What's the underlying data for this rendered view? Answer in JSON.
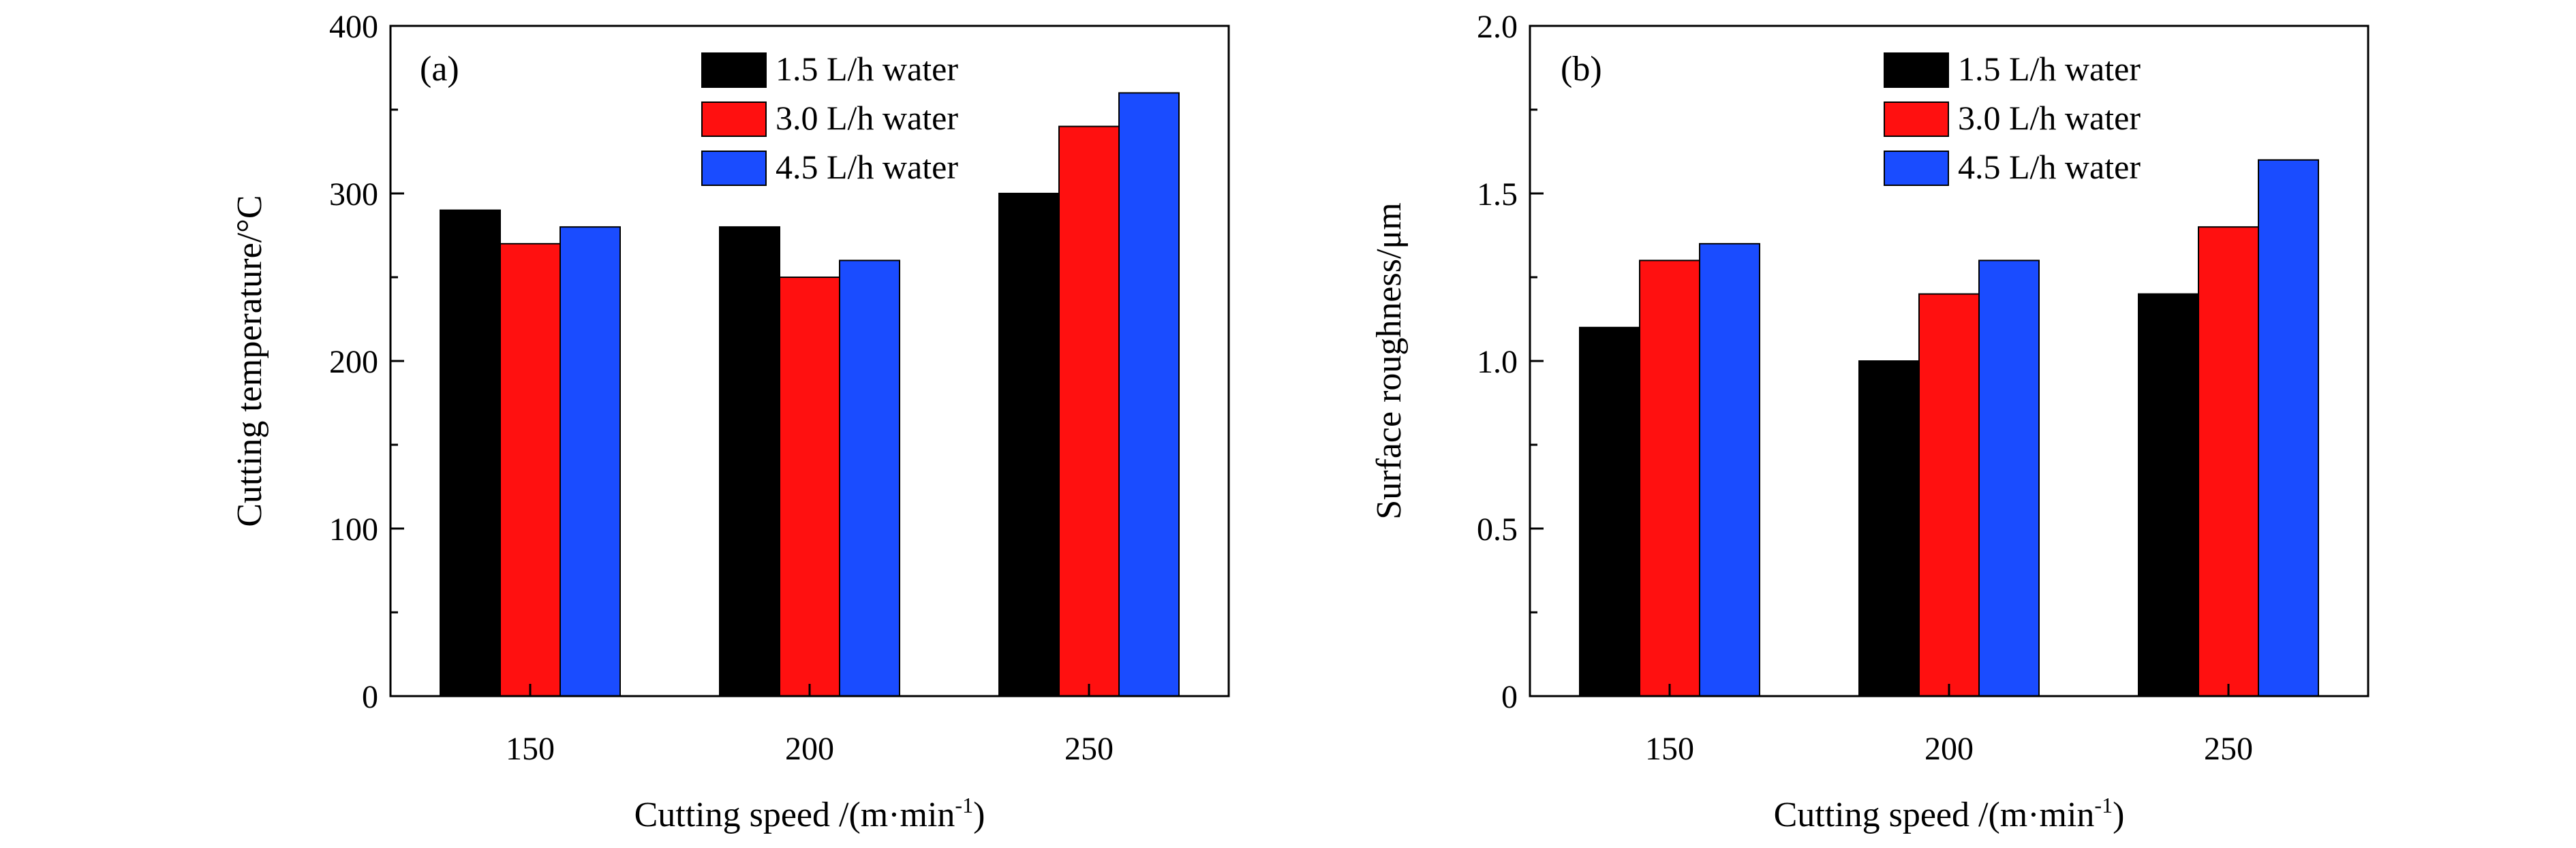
{
  "chart_data": [
    {
      "type": "bar",
      "panel_label": "(a)",
      "categories": [
        "150",
        "200",
        "250"
      ],
      "series": [
        {
          "name": "1.5 L/h water",
          "color": "#000000",
          "values": [
            290,
            280,
            300
          ]
        },
        {
          "name": "3.0 L/h water",
          "color": "#ff1010",
          "values": [
            270,
            250,
            340
          ]
        },
        {
          "name": "4.5 L/h water",
          "color": "#1a4cff",
          "values": [
            280,
            260,
            360
          ]
        }
      ],
      "xlabel": "Cutting speed /(m·min",
      "xlabel_sup": "-1",
      "xlabel_close": ")",
      "ylabel": "Cutting temperature/°C",
      "ylim": [
        0,
        400
      ],
      "yticks": [
        0,
        100,
        200,
        300,
        400
      ],
      "ytick_labels": [
        "0",
        "100",
        "200",
        "300",
        "400"
      ],
      "legend_position": "top-right",
      "grid": false
    },
    {
      "type": "bar",
      "panel_label": "(b)",
      "categories": [
        "150",
        "200",
        "250"
      ],
      "series": [
        {
          "name": "1.5 L/h water",
          "color": "#000000",
          "values": [
            1.1,
            1.0,
            1.2
          ]
        },
        {
          "name": "3.0 L/h water",
          "color": "#ff1010",
          "values": [
            1.3,
            1.2,
            1.4
          ]
        },
        {
          "name": "4.5 L/h water",
          "color": "#1a4cff",
          "values": [
            1.35,
            1.3,
            1.6
          ]
        }
      ],
      "xlabel": "Cutting speed /(m·min",
      "xlabel_sup": "-1",
      "xlabel_close": ")",
      "ylabel": "Surface roughness/μm",
      "ylim": [
        0,
        2.0
      ],
      "yticks": [
        0,
        0.5,
        1.0,
        1.5,
        2.0
      ],
      "ytick_labels": [
        "0",
        "0.5",
        "1.0",
        "1.5",
        "2.0"
      ],
      "legend_position": "top-right",
      "grid": false
    }
  ]
}
